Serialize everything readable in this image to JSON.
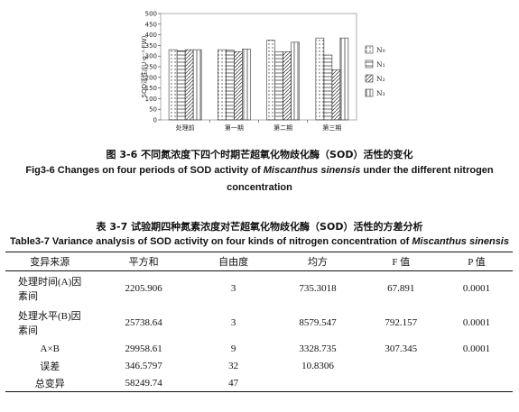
{
  "figure": {
    "caption_cn": "图 3-6 不同氮浓度下四个时期芒超氧化物歧化酶（SOD）活性的变化",
    "caption_en_pre": "Fig3-6 Changes on four periods of SOD activity of ",
    "caption_en_species": "Miscanthus sinensis",
    "caption_en_post": " under the different nitrogen",
    "caption_en_line2": "concentration"
  },
  "chart_data": {
    "type": "bar",
    "categories": [
      "处理前",
      "第一期",
      "第二期",
      "第三期"
    ],
    "series": [
      {
        "name": "N₀",
        "values": [
          330,
          330,
          375,
          385
        ],
        "pattern": "dots"
      },
      {
        "name": "N₁",
        "values": [
          325,
          328,
          320,
          305
        ],
        "pattern": "hlines"
      },
      {
        "name": "N₂",
        "values": [
          330,
          320,
          320,
          235
        ],
        "pattern": "diag"
      },
      {
        "name": "N₃",
        "values": [
          330,
          333,
          365,
          385
        ],
        "pattern": "vlines"
      }
    ],
    "ylim": [
      0,
      500
    ],
    "yticks": [
      0,
      50,
      100,
      150,
      200,
      250,
      300,
      350,
      400,
      450,
      500
    ],
    "ylabel": "SOD活性/(U·g⁻¹·FW)",
    "legend_position": "right",
    "grid": false,
    "colors": {
      "bar_fill": "#ffffff",
      "bar_stroke": "#333333",
      "pattern": "#444444"
    }
  },
  "table": {
    "caption_cn": "表 3-7 试验期四种氮素浓度对芒超氧化物歧化酶（SOD）活性的方差分析",
    "caption_en_pre": "Table3-7 Variance analysis of SOD activity on four kinds of nitrogen concentration of ",
    "caption_en_species": "Miscanthus sinensis",
    "headers": [
      "变异来源",
      "平方和",
      "自由度",
      "均方",
      "F 值",
      "P 值"
    ],
    "rows": [
      {
        "source": "处理时间(A)因素间",
        "ss": "2205.906",
        "df": "3",
        "ms": "735.3018",
        "f": "67.891",
        "p": "0.0001"
      },
      {
        "source": "处理水平(B)因素间",
        "ss": "25738.64",
        "df": "3",
        "ms": "8579.547",
        "f": "792.157",
        "p": "0.0001"
      },
      {
        "source": "A×B",
        "ss": "29958.61",
        "df": "9",
        "ms": "3328.735",
        "f": "307.345",
        "p": "0.0001"
      },
      {
        "source": "误差",
        "ss": "346.5797",
        "df": "32",
        "ms": "10.8306",
        "f": "",
        "p": ""
      },
      {
        "source": "总变异",
        "ss": "58249.74",
        "df": "47",
        "ms": "",
        "f": "",
        "p": ""
      }
    ]
  }
}
